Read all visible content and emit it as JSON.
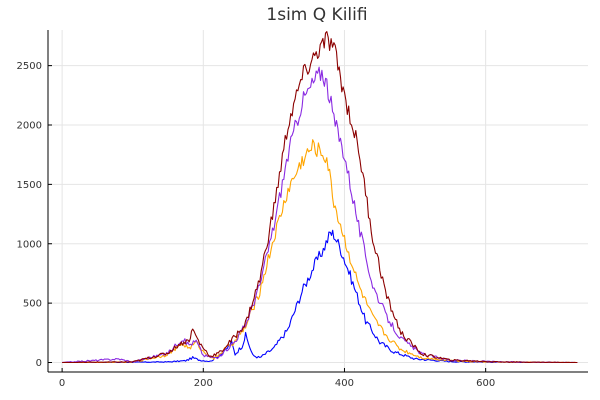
{
  "chart_data": {
    "type": "line",
    "title": "1sim Q Kilifi",
    "xlabel": "",
    "ylabel": "",
    "xlim": [
      -20,
      745
    ],
    "ylim": [
      -80,
      2800
    ],
    "xticks": [
      0,
      200,
      400,
      600
    ],
    "yticks": [
      0,
      500,
      1000,
      1500,
      2000,
      2500
    ],
    "xtick_labels": [
      "0",
      "200",
      "400",
      "600"
    ],
    "ytick_labels": [
      "0",
      "500",
      "1000",
      "1500",
      "2000",
      "2500"
    ],
    "grid": true,
    "legend": "none",
    "series": [
      {
        "color": "#0000ff",
        "points": [
          [
            0,
            0
          ],
          [
            100,
            2
          ],
          [
            150,
            5
          ],
          [
            175,
            15
          ],
          [
            185,
            40
          ],
          [
            195,
            20
          ],
          [
            210,
            10
          ],
          [
            230,
            90
          ],
          [
            240,
            170
          ],
          [
            245,
            70
          ],
          [
            255,
            140
          ],
          [
            260,
            230
          ],
          [
            270,
            60
          ],
          [
            280,
            40
          ],
          [
            300,
            120
          ],
          [
            320,
            280
          ],
          [
            340,
            600
          ],
          [
            360,
            850
          ],
          [
            370,
            950
          ],
          [
            380,
            1090
          ],
          [
            385,
            1080
          ],
          [
            395,
            950
          ],
          [
            410,
            700
          ],
          [
            430,
            350
          ],
          [
            450,
            170
          ],
          [
            470,
            90
          ],
          [
            500,
            30
          ],
          [
            550,
            8
          ],
          [
            600,
            3
          ],
          [
            730,
            0
          ]
        ]
      },
      {
        "color": "#ffa500",
        "points": [
          [
            0,
            0
          ],
          [
            100,
            3
          ],
          [
            145,
            60
          ],
          [
            160,
            110
          ],
          [
            170,
            160
          ],
          [
            180,
            120
          ],
          [
            190,
            170
          ],
          [
            200,
            90
          ],
          [
            215,
            30
          ],
          [
            230,
            110
          ],
          [
            245,
            180
          ],
          [
            260,
            300
          ],
          [
            280,
            600
          ],
          [
            300,
            1050
          ],
          [
            320,
            1450
          ],
          [
            340,
            1700
          ],
          [
            355,
            1820
          ],
          [
            365,
            1780
          ],
          [
            375,
            1720
          ],
          [
            385,
            1350
          ],
          [
            400,
            1040
          ],
          [
            420,
            650
          ],
          [
            440,
            380
          ],
          [
            460,
            220
          ],
          [
            480,
            110
          ],
          [
            510,
            40
          ],
          [
            560,
            12
          ],
          [
            620,
            4
          ],
          [
            730,
            0
          ]
        ]
      },
      {
        "color": "#8a2be2",
        "points": [
          [
            0,
            0
          ],
          [
            80,
            30
          ],
          [
            100,
            5
          ],
          [
            150,
            80
          ],
          [
            170,
            200
          ],
          [
            180,
            150
          ],
          [
            190,
            180
          ],
          [
            200,
            60
          ],
          [
            220,
            35
          ],
          [
            245,
            180
          ],
          [
            260,
            320
          ],
          [
            280,
            650
          ],
          [
            300,
            1150
          ],
          [
            320,
            1750
          ],
          [
            340,
            2200
          ],
          [
            360,
            2400
          ],
          [
            368,
            2450
          ],
          [
            375,
            2350
          ],
          [
            385,
            2050
          ],
          [
            400,
            1750
          ],
          [
            420,
            1150
          ],
          [
            440,
            650
          ],
          [
            460,
            380
          ],
          [
            480,
            200
          ],
          [
            510,
            70
          ],
          [
            550,
            20
          ],
          [
            620,
            5
          ],
          [
            730,
            0
          ]
        ]
      },
      {
        "color": "#8b0000",
        "points": [
          [
            0,
            0
          ],
          [
            100,
            5
          ],
          [
            150,
            80
          ],
          [
            165,
            150
          ],
          [
            180,
            190
          ],
          [
            185,
            280
          ],
          [
            195,
            160
          ],
          [
            210,
            50
          ],
          [
            225,
            90
          ],
          [
            245,
            220
          ],
          [
            260,
            330
          ],
          [
            280,
            700
          ],
          [
            300,
            1300
          ],
          [
            320,
            2000
          ],
          [
            340,
            2400
          ],
          [
            360,
            2600
          ],
          [
            375,
            2720
          ],
          [
            385,
            2650
          ],
          [
            400,
            2250
          ],
          [
            420,
            1800
          ],
          [
            440,
            1050
          ],
          [
            460,
            550
          ],
          [
            480,
            250
          ],
          [
            510,
            70
          ],
          [
            550,
            20
          ],
          [
            620,
            5
          ],
          [
            730,
            0
          ]
        ]
      }
    ]
  }
}
